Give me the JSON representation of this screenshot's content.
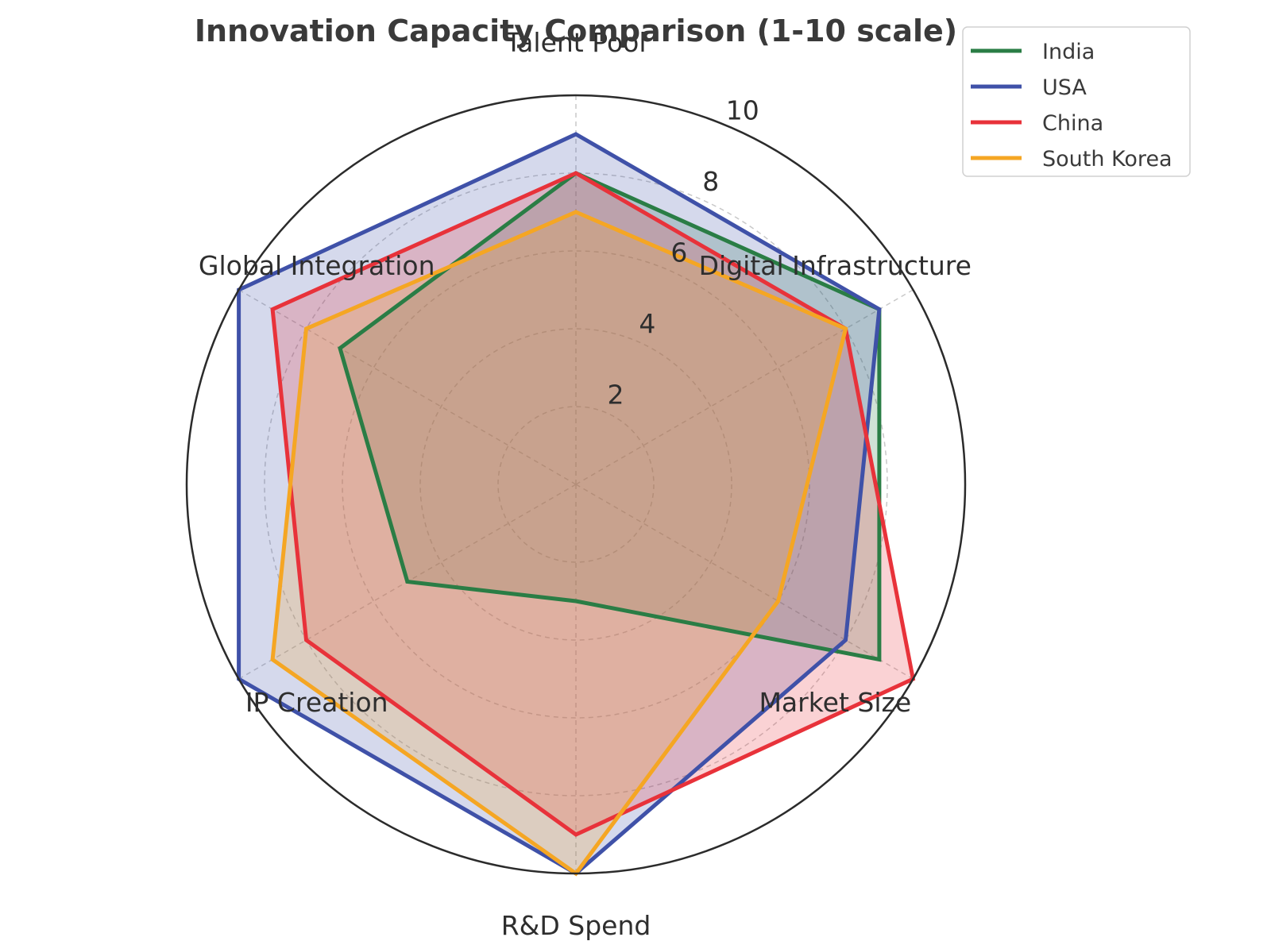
{
  "chart_data": {
    "type": "radar",
    "title": "Innovation Capacity Comparison (1-10 scale)",
    "categories": [
      "Talent Pool",
      "Digital Infrastructure",
      "Market Size",
      "R&D Spend",
      "IP Creation",
      "Global Integration"
    ],
    "rlim": [
      0,
      10
    ],
    "rticks": [
      2,
      4,
      6,
      8,
      10
    ],
    "rtick_labels": [
      "2",
      "4",
      "6",
      "8",
      "10"
    ],
    "grid": true,
    "legend_position": "top-right",
    "series": [
      {
        "name": "India",
        "color": "#2a7d45",
        "values": [
          8,
          9,
          9,
          3,
          5,
          7
        ]
      },
      {
        "name": "USA",
        "color": "#3f51a8",
        "values": [
          9,
          9,
          8,
          10,
          10,
          10
        ]
      },
      {
        "name": "China",
        "color": "#e8323a",
        "values": [
          8,
          8,
          10,
          9,
          8,
          9
        ]
      },
      {
        "name": "South Korea",
        "color": "#f5a623",
        "values": [
          7,
          8,
          6,
          10,
          9,
          8
        ]
      }
    ]
  }
}
